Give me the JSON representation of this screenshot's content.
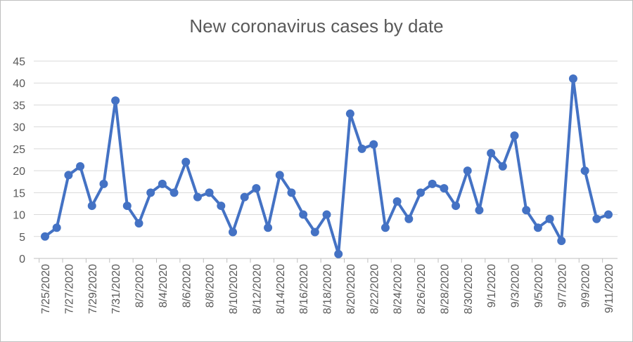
{
  "chart_data": {
    "type": "line",
    "title": "New coronavirus cases by date",
    "xlabel": "",
    "ylabel": "",
    "ylim": [
      0,
      45
    ],
    "yticks": [
      0,
      5,
      10,
      15,
      20,
      25,
      30,
      35,
      40,
      45
    ],
    "grid": true,
    "legend": "none",
    "x": [
      "7/25/2020",
      "7/26/2020",
      "7/27/2020",
      "7/28/2020",
      "7/29/2020",
      "7/30/2020",
      "7/31/2020",
      "8/1/2020",
      "8/2/2020",
      "8/3/2020",
      "8/4/2020",
      "8/5/2020",
      "8/6/2020",
      "8/7/2020",
      "8/8/2020",
      "8/9/2020",
      "8/10/2020",
      "8/11/2020",
      "8/12/2020",
      "8/13/2020",
      "8/14/2020",
      "8/15/2020",
      "8/16/2020",
      "8/17/2020",
      "8/18/2020",
      "8/19/2020",
      "8/20/2020",
      "8/21/2020",
      "8/22/2020",
      "8/23/2020",
      "8/24/2020",
      "8/25/2020",
      "8/26/2020",
      "8/27/2020",
      "8/28/2020",
      "8/29/2020",
      "8/30/2020",
      "8/31/2020",
      "9/1/2020",
      "9/2/2020",
      "9/3/2020",
      "9/4/2020",
      "9/5/2020",
      "9/6/2020",
      "9/7/2020",
      "9/8/2020",
      "9/9/2020",
      "9/10/2020",
      "9/11/2020"
    ],
    "xtick_labels": [
      "7/25/2020",
      "7/27/2020",
      "7/29/2020",
      "7/31/2020",
      "8/2/2020",
      "8/4/2020",
      "8/6/2020",
      "8/8/2020",
      "8/10/2020",
      "8/12/2020",
      "8/14/2020",
      "8/16/2020",
      "8/18/2020",
      "8/20/2020",
      "8/22/2020",
      "8/24/2020",
      "8/26/2020",
      "8/28/2020",
      "8/30/2020",
      "9/1/2020",
      "9/3/2020",
      "9/5/2020",
      "9/7/2020",
      "9/9/2020",
      "9/11/2020"
    ],
    "series": [
      {
        "values": [
          5,
          7,
          19,
          21,
          12,
          17,
          36,
          12,
          8,
          15,
          17,
          15,
          22,
          14,
          15,
          12,
          6,
          14,
          16,
          7,
          19,
          15,
          10,
          6,
          10,
          1,
          33,
          25,
          26,
          7,
          13,
          9,
          15,
          17,
          16,
          12,
          20,
          11,
          24,
          21,
          28,
          11,
          7,
          9,
          4,
          41,
          20,
          9,
          10
        ],
        "color": "#4472c4"
      }
    ]
  }
}
